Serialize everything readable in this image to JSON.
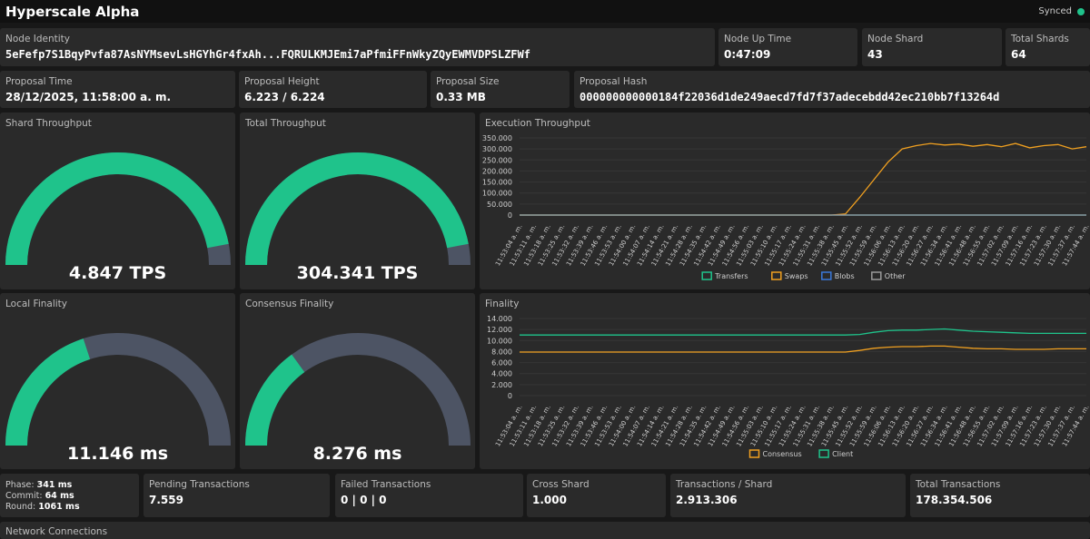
{
  "header": {
    "title": "Hyperscale Alpha",
    "status": "Synced",
    "status_color": "#1fc38b"
  },
  "node_identity": {
    "label": "Node Identity",
    "value": "5eFefp7S1BqyPvfa87AsNYMsevLsHGYhGr4fxAh...FQRULKMJEmi7aPfmiFFnWkyZQyEWMVDPSLZFWf"
  },
  "node_up_time": {
    "label": "Node Up Time",
    "value": "0:47:09"
  },
  "node_shard": {
    "label": "Node Shard",
    "value": "43"
  },
  "total_shards": {
    "label": "Total Shards",
    "value": "64"
  },
  "proposal_time": {
    "label": "Proposal Time",
    "value": "28/12/2025, 11:58:00 a. m."
  },
  "proposal_height": {
    "label": "Proposal Height",
    "value": "6.223 / 6.224"
  },
  "proposal_size": {
    "label": "Proposal Size",
    "value": "0.33 MB"
  },
  "proposal_hash": {
    "label": "Proposal Hash",
    "value": "000000000000184f22036d1de249aecd7fd7f37adecebdd42ec210bb7f13264d"
  },
  "gauges": {
    "shard_throughput": {
      "label": "Shard Throughput",
      "value": "4.847 TPS",
      "fraction": 0.94
    },
    "total_throughput": {
      "label": "Total Throughput",
      "value": "304.341 TPS",
      "fraction": 0.94
    },
    "local_finality": {
      "label": "Local Finality",
      "value": "11.146 ms",
      "fraction": 0.4
    },
    "consensus_finality": {
      "label": "Consensus Finality",
      "value": "8.276 ms",
      "fraction": 0.3
    }
  },
  "colors": {
    "accent": "#1fc38b",
    "orange": "#f0a020",
    "blue": "#3a78d8",
    "gray": "#9a9a9a",
    "track": "#4d5464"
  },
  "chart_data": [
    {
      "type": "line",
      "title": "Execution Throughput",
      "x": [
        "11:53:04 a. m.",
        "11:53:11 a. m.",
        "11:53:18 a. m.",
        "11:53:25 a. m.",
        "11:53:32 a. m.",
        "11:53:39 a. m.",
        "11:53:46 a. m.",
        "11:53:53 a. m.",
        "11:54:00 a. m.",
        "11:54:07 a. m.",
        "11:54:14 a. m.",
        "11:54:21 a. m.",
        "11:54:28 a. m.",
        "11:54:35 a. m.",
        "11:54:42 a. m.",
        "11:54:49 a. m.",
        "11:54:56 a. m.",
        "11:55:03 a. m.",
        "11:55:10 a. m.",
        "11:55:17 a. m.",
        "11:55:24 a. m.",
        "11:55:31 a. m.",
        "11:55:38 a. m.",
        "11:55:45 a. m.",
        "11:55:52 a. m.",
        "11:55:59 a. m.",
        "11:56:06 a. m.",
        "11:56:13 a. m.",
        "11:56:20 a. m.",
        "11:56:27 a. m.",
        "11:56:34 a. m.",
        "11:56:41 a. m.",
        "11:56:48 a. m.",
        "11:56:55 a. m.",
        "11:57:02 a. m.",
        "11:57:09 a. m.",
        "11:57:16 a. m.",
        "11:57:23 a. m.",
        "11:57:30 a. m.",
        "11:57:37 a. m.",
        "11:57:44 a. m."
      ],
      "yticks": [
        "350.000",
        "300.000",
        "250.000",
        "200.000",
        "150.000",
        "100.000",
        "50.000",
        "0"
      ],
      "ylim": [
        0,
        350000
      ],
      "series": [
        {
          "name": "Transfers",
          "color": "#1fc38b",
          "values": [
            0,
            0,
            0,
            0,
            0,
            0,
            0,
            0,
            0,
            0,
            0,
            0,
            0,
            0,
            0,
            0,
            0,
            0,
            0,
            0,
            0,
            0,
            0,
            0,
            0,
            0,
            0,
            0,
            0,
            0,
            0,
            0,
            0,
            0,
            0,
            0,
            0,
            0,
            0,
            0,
            0
          ]
        },
        {
          "name": "Swaps",
          "color": "#f0a020",
          "values": [
            0,
            0,
            0,
            0,
            0,
            0,
            0,
            0,
            0,
            0,
            0,
            0,
            0,
            0,
            0,
            0,
            0,
            0,
            0,
            0,
            0,
            0,
            0,
            5000,
            80000,
            160000,
            240000,
            300000,
            315000,
            325000,
            318000,
            322000,
            312000,
            320000,
            310000,
            325000,
            305000,
            315000,
            320000,
            300000,
            310000
          ]
        },
        {
          "name": "Blobs",
          "color": "#3a78d8",
          "values": [
            0,
            0,
            0,
            0,
            0,
            0,
            0,
            0,
            0,
            0,
            0,
            0,
            0,
            0,
            0,
            0,
            0,
            0,
            0,
            0,
            0,
            0,
            0,
            0,
            0,
            0,
            0,
            0,
            0,
            0,
            0,
            0,
            0,
            0,
            0,
            0,
            0,
            0,
            0,
            0,
            0
          ]
        },
        {
          "name": "Other",
          "color": "#9a9a9a",
          "values": [
            0,
            0,
            0,
            0,
            0,
            0,
            0,
            0,
            0,
            0,
            0,
            0,
            0,
            0,
            0,
            0,
            0,
            0,
            0,
            0,
            0,
            0,
            0,
            0,
            0,
            0,
            0,
            0,
            0,
            0,
            0,
            0,
            0,
            0,
            0,
            0,
            0,
            0,
            0,
            0,
            0
          ]
        }
      ]
    },
    {
      "type": "line",
      "title": "Finality",
      "x": [
        "11:53:04 a. m.",
        "11:53:11 a. m.",
        "11:53:18 a. m.",
        "11:53:25 a. m.",
        "11:53:32 a. m.",
        "11:53:39 a. m.",
        "11:53:46 a. m.",
        "11:53:53 a. m.",
        "11:54:00 a. m.",
        "11:54:07 a. m.",
        "11:54:14 a. m.",
        "11:54:21 a. m.",
        "11:54:28 a. m.",
        "11:54:35 a. m.",
        "11:54:42 a. m.",
        "11:54:49 a. m.",
        "11:54:56 a. m.",
        "11:55:03 a. m.",
        "11:55:10 a. m.",
        "11:55:17 a. m.",
        "11:55:24 a. m.",
        "11:55:31 a. m.",
        "11:55:38 a. m.",
        "11:55:45 a. m.",
        "11:55:52 a. m.",
        "11:55:59 a. m.",
        "11:56:06 a. m.",
        "11:56:13 a. m.",
        "11:56:20 a. m.",
        "11:56:27 a. m.",
        "11:56:34 a. m.",
        "11:56:41 a. m.",
        "11:56:48 a. m.",
        "11:56:55 a. m.",
        "11:57:02 a. m.",
        "11:57:09 a. m.",
        "11:57:16 a. m.",
        "11:57:23 a. m.",
        "11:57:30 a. m.",
        "11:57:37 a. m.",
        "11:57:44 a. m."
      ],
      "yticks": [
        "14.000",
        "12.000",
        "10.000",
        "8.000",
        "6.000",
        "4.000",
        "2.000",
        "0"
      ],
      "ylim": [
        0,
        14000
      ],
      "series": [
        {
          "name": "Consensus",
          "color": "#f0a020",
          "values": [
            7900,
            7900,
            7900,
            7900,
            7900,
            7900,
            7900,
            7900,
            7900,
            7900,
            7900,
            7900,
            7900,
            7900,
            7900,
            7900,
            7900,
            7900,
            7900,
            7900,
            7900,
            7900,
            7900,
            7900,
            8200,
            8600,
            8800,
            8900,
            8900,
            9000,
            9000,
            8800,
            8600,
            8500,
            8500,
            8400,
            8400,
            8400,
            8500,
            8500,
            8500
          ]
        },
        {
          "name": "Client",
          "color": "#1fc38b",
          "values": [
            11000,
            11000,
            11000,
            11000,
            11000,
            11000,
            11000,
            11000,
            11000,
            11000,
            11000,
            11000,
            11000,
            11000,
            11000,
            11000,
            11000,
            11000,
            11000,
            11000,
            11000,
            11000,
            11000,
            11000,
            11100,
            11500,
            11800,
            11900,
            11900,
            12000,
            12100,
            11900,
            11700,
            11600,
            11500,
            11400,
            11300,
            11300,
            11300,
            11300,
            11300
          ]
        }
      ]
    }
  ],
  "phase": {
    "phase_label": "Phase:",
    "phase_value": "341 ms",
    "commit_label": "Commit:",
    "commit_value": "64 ms",
    "round_label": "Round:",
    "round_value": "1061 ms"
  },
  "pending_transactions": {
    "label": "Pending Transactions",
    "value": "7.559"
  },
  "failed_transactions": {
    "label": "Failed Transactions",
    "value": "0 | 0 | 0"
  },
  "cross_shard": {
    "label": "Cross Shard",
    "value": "1.000"
  },
  "tx_per_shard": {
    "label": "Transactions / Shard",
    "value": "2.913.306"
  },
  "total_transactions": {
    "label": "Total Transactions",
    "value": "178.354.506"
  },
  "network_connections": {
    "label": "Network Connections"
  }
}
